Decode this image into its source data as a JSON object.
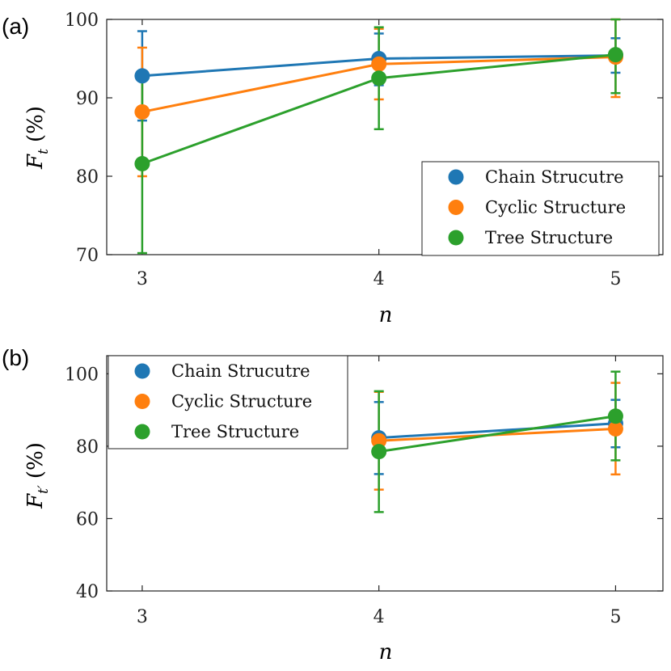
{
  "chart_data": [
    {
      "type": "line",
      "panel_label": "(a)",
      "xlabel": "n",
      "ylabel_main": "F",
      "ylabel_sub": "t",
      "ylabel_unit": "(%)",
      "x": [
        3,
        4,
        5
      ],
      "xlim": [
        2.85,
        5.2
      ],
      "ylim": [
        70,
        100
      ],
      "xticks": [
        3,
        4,
        5
      ],
      "yticks": [
        70,
        80,
        90,
        100
      ],
      "legend_position": "lower-right",
      "series": [
        {
          "name": "Chain Strucutre",
          "color": "#1f77b4",
          "values": [
            92.8,
            95.0,
            95.4
          ],
          "err_low": [
            87.1,
            91.6,
            93.2
          ],
          "err_high": [
            98.5,
            98.2,
            97.6
          ]
        },
        {
          "name": "Cyclic Structure",
          "color": "#ff7f0e",
          "values": [
            88.2,
            94.3,
            95.2
          ],
          "err_low": [
            80.0,
            89.8,
            90.1
          ],
          "err_high": [
            96.4,
            98.8,
            100.0
          ]
        },
        {
          "name": "Tree Structure",
          "color": "#2ca02c",
          "values": [
            81.6,
            92.5,
            95.5
          ],
          "err_low": [
            70.2,
            86.0,
            90.6
          ],
          "err_high": [
            93.0,
            99.0,
            100.0
          ]
        }
      ]
    },
    {
      "type": "line",
      "panel_label": "(b)",
      "xlabel": "n",
      "ylabel_main": "F",
      "ylabel_sub": "t′",
      "ylabel_unit": "(%)",
      "x": [
        4,
        5
      ],
      "xlim": [
        2.85,
        5.2
      ],
      "ylim": [
        40,
        105
      ],
      "xticks": [
        3,
        4,
        5
      ],
      "yticks": [
        40,
        60,
        80,
        100
      ],
      "legend_position": "top-left",
      "series": [
        {
          "name": "Chain Strucutre",
          "color": "#1f77b4",
          "values": [
            82.3,
            86.3
          ],
          "err_low": [
            72.3,
            79.7
          ],
          "err_high": [
            92.2,
            92.8
          ]
        },
        {
          "name": "Cyclic Structure",
          "color": "#ff7f0e",
          "values": [
            81.5,
            84.8
          ],
          "err_low": [
            68.0,
            72.2
          ],
          "err_high": [
            95.0,
            97.5
          ]
        },
        {
          "name": "Tree Structure",
          "color": "#2ca02c",
          "values": [
            78.5,
            88.3
          ],
          "err_low": [
            61.8,
            76.1
          ],
          "err_high": [
            95.2,
            100.6
          ]
        }
      ]
    }
  ]
}
